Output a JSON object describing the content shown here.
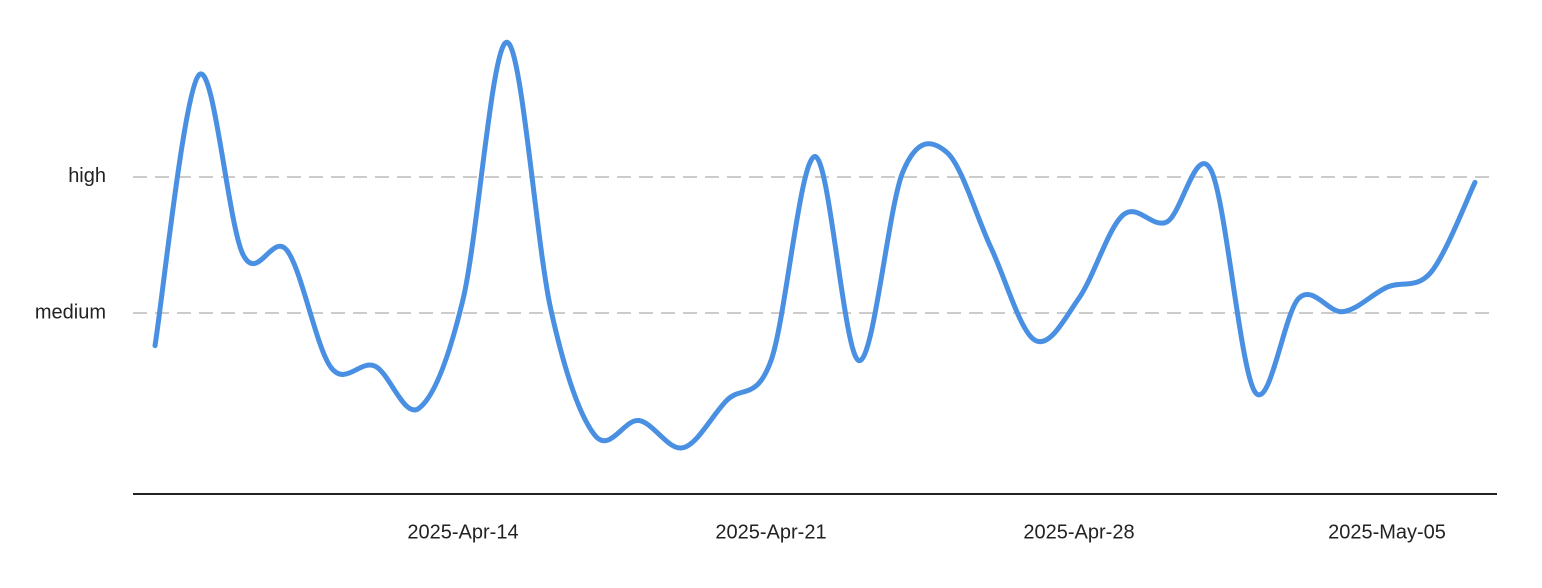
{
  "chart_data": {
    "type": "line",
    "x": [
      "2025-Apr-07",
      "2025-Apr-08",
      "2025-Apr-09",
      "2025-Apr-10",
      "2025-Apr-11",
      "2025-Apr-12",
      "2025-Apr-13",
      "2025-Apr-14",
      "2025-Apr-15",
      "2025-Apr-16",
      "2025-Apr-17",
      "2025-Apr-18",
      "2025-Apr-19",
      "2025-Apr-20",
      "2025-Apr-21",
      "2025-Apr-22",
      "2025-Apr-23",
      "2025-Apr-24",
      "2025-Apr-25",
      "2025-Apr-26",
      "2025-Apr-27",
      "2025-Apr-28",
      "2025-Apr-29",
      "2025-Apr-30",
      "2025-May-01",
      "2025-May-02",
      "2025-May-03",
      "2025-May-04",
      "2025-May-05",
      "2025-May-06",
      "2025-May-07"
    ],
    "series": [
      {
        "color": "#4a90e2",
        "values": [
          1.76,
          3.75,
          2.43,
          2.46,
          1.6,
          1.61,
          1.3,
          2.1,
          3.99,
          2.02,
          1.1,
          1.21,
          1.01,
          1.36,
          1.65,
          3.15,
          1.65,
          3.04,
          3.18,
          2.48,
          1.8,
          2.11,
          2.72,
          2.67,
          3.05,
          1.42,
          2.11,
          2.01,
          2.19,
          2.3,
          2.96
        ]
      }
    ],
    "xlim": [
      "2025-Apr-07",
      "2025-May-07"
    ],
    "xticks": [
      "2025-Apr-14",
      "2025-Apr-21",
      "2025-Apr-28",
      "2025-May-05"
    ],
    "ylim": [
      0.67,
      4.08
    ],
    "yticks": [
      {
        "value": 2,
        "label": "medium"
      },
      {
        "value": 3,
        "label": "high"
      }
    ],
    "grid": true
  }
}
